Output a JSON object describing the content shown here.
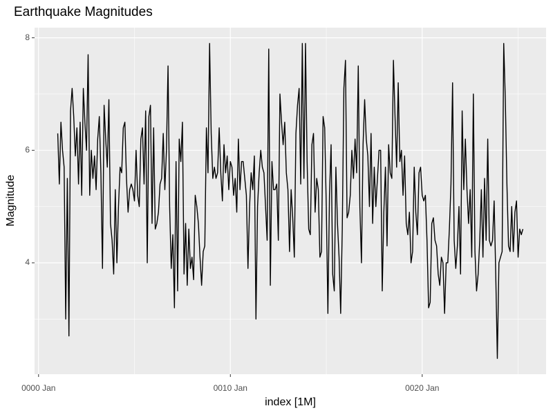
{
  "chart_data": {
    "type": "line",
    "title": "Earthquake Magnitudes",
    "x_label": "index [1M]",
    "y_label": "Magnitude",
    "xlim": [
      -2.5,
      317.5
    ],
    "ylim": [
      2.02,
      8.18
    ],
    "xticks": [
      {
        "value": 0,
        "label": "0000 Jan"
      },
      {
        "value": 120,
        "label": "0010 Jan"
      },
      {
        "value": 240,
        "label": "0020 Jan"
      }
    ],
    "yticks": [
      4,
      6,
      8
    ],
    "xminor": [
      60,
      180,
      300
    ],
    "yminor": [
      3,
      5,
      7
    ],
    "grid": true,
    "series": [
      {
        "color": "#000000",
        "x": [
          12,
          13,
          14,
          15,
          16,
          17,
          18,
          19,
          20,
          21,
          22,
          23,
          24,
          25,
          26,
          27,
          28,
          29,
          30,
          31,
          32,
          33,
          34,
          35,
          36,
          37,
          38,
          39,
          40,
          41,
          42,
          43,
          44,
          45,
          46,
          47,
          48,
          49,
          50,
          51,
          52,
          53,
          54,
          55,
          56,
          57,
          58,
          59,
          60,
          61,
          62,
          63,
          64,
          65,
          66,
          67,
          68,
          69,
          70,
          71,
          72,
          73,
          74,
          75,
          76,
          77,
          78,
          79,
          80,
          81,
          82,
          83,
          84,
          85,
          86,
          87,
          88,
          89,
          90,
          91,
          92,
          93,
          94,
          95,
          96,
          97,
          98,
          99,
          100,
          101,
          102,
          103,
          104,
          105,
          106,
          107,
          108,
          109,
          110,
          111,
          112,
          113,
          114,
          115,
          116,
          117,
          118,
          119,
          120,
          121,
          122,
          123,
          124,
          125,
          126,
          127,
          128,
          129,
          130,
          131,
          132,
          133,
          134,
          135,
          136,
          137,
          138,
          139,
          140,
          141,
          142,
          143,
          144,
          145,
          146,
          147,
          148,
          149,
          150,
          151,
          152,
          153,
          154,
          155,
          156,
          157,
          158,
          159,
          160,
          161,
          162,
          163,
          164,
          165,
          166,
          167,
          168,
          169,
          170,
          171,
          172,
          173,
          174,
          175,
          176,
          177,
          178,
          179,
          180,
          181,
          182,
          183,
          184,
          185,
          186,
          187,
          188,
          189,
          190,
          191,
          192,
          193,
          194,
          195,
          196,
          197,
          198,
          199,
          200,
          201,
          202,
          203,
          204,
          205,
          206,
          207,
          208,
          209,
          210,
          211,
          212,
          213,
          214,
          215,
          216,
          217,
          218,
          219,
          220,
          221,
          222,
          223,
          224,
          225,
          226,
          227,
          228,
          229,
          230,
          231,
          232,
          233,
          234,
          235,
          236,
          237,
          238,
          239,
          240,
          241,
          242,
          243,
          244,
          245,
          246,
          247,
          248,
          249,
          250,
          251,
          252,
          253,
          254,
          255,
          256,
          257,
          258,
          259,
          260,
          261,
          262,
          263,
          264,
          265,
          266,
          267,
          268,
          269,
          270,
          271,
          272,
          273,
          274,
          275,
          276,
          277,
          278,
          279,
          280,
          281,
          282,
          283,
          284,
          285,
          286,
          287,
          288,
          289,
          290,
          291,
          292,
          293,
          294,
          295,
          296,
          297,
          298,
          299,
          300,
          301,
          302,
          303
        ],
        "values": [
          6.3,
          5.4,
          6.5,
          6.0,
          5.7,
          3.0,
          5.5,
          2.7,
          6.7,
          7.1,
          6.6,
          5.9,
          6.4,
          5.4,
          6.5,
          5.2,
          7.1,
          6.5,
          6.0,
          7.7,
          5.2,
          6.0,
          5.5,
          5.9,
          5.3,
          6.2,
          6.6,
          5.6,
          3.9,
          6.8,
          6.2,
          5.7,
          6.9,
          4.7,
          4.4,
          3.8,
          5.3,
          4.0,
          5.0,
          5.7,
          5.6,
          6.4,
          6.5,
          5.5,
          4.9,
          5.3,
          5.4,
          5.3,
          5.1,
          6.0,
          5.2,
          5.0,
          6.2,
          6.4,
          5.4,
          6.7,
          4.0,
          6.6,
          6.8,
          4.7,
          6.4,
          4.6,
          4.7,
          4.9,
          5.4,
          5.5,
          6.3,
          5.3,
          6.0,
          7.5,
          5.0,
          3.9,
          4.5,
          3.2,
          5.8,
          3.5,
          6.2,
          5.8,
          6.5,
          3.8,
          4.7,
          3.6,
          4.6,
          3.9,
          4.1,
          3.7,
          5.2,
          5.0,
          4.7,
          4.1,
          3.6,
          4.2,
          4.3,
          6.4,
          5.6,
          7.9,
          6.3,
          5.5,
          5.7,
          5.5,
          5.6,
          6.4,
          5.6,
          5.1,
          6.1,
          5.6,
          5.9,
          5.3,
          5.8,
          5.7,
          5.2,
          5.5,
          4.9,
          6.2,
          5.3,
          5.8,
          5.8,
          5.5,
          5.2,
          3.9,
          5.0,
          5.6,
          5.3,
          5.9,
          3.0,
          5.0,
          5.6,
          6.0,
          5.7,
          5.6,
          5.0,
          4.4,
          7.8,
          3.6,
          5.8,
          5.3,
          5.3,
          5.4,
          4.4,
          7.0,
          6.5,
          6.1,
          6.5,
          5.6,
          5.3,
          4.2,
          5.3,
          4.8,
          4.1,
          6.3,
          6.8,
          7.1,
          5.4,
          7.9,
          5.5,
          7.9,
          5.8,
          4.6,
          4.5,
          6.1,
          6.3,
          4.9,
          5.5,
          5.3,
          4.1,
          4.2,
          6.6,
          6.4,
          5.0,
          3.1,
          5.2,
          6.1,
          3.8,
          3.5,
          5.7,
          4.7,
          4.1,
          3.1,
          4.6,
          7.1,
          7.6,
          4.8,
          4.9,
          5.2,
          6.0,
          5.5,
          6.2,
          5.6,
          7.5,
          5.0,
          4.0,
          6.1,
          6.9,
          6.2,
          5.9,
          5.0,
          6.3,
          4.7,
          5.7,
          5.0,
          5.5,
          6.0,
          6.0,
          3.5,
          4.9,
          5.7,
          4.3,
          6.1,
          5.6,
          5.5,
          7.6,
          6.6,
          5.7,
          7.2,
          5.8,
          6.0,
          5.2,
          5.9,
          4.7,
          4.5,
          4.9,
          4.0,
          4.2,
          5.7,
          4.9,
          4.5,
          5.6,
          5.7,
          5.2,
          5.1,
          5.2,
          4.4,
          3.2,
          3.3,
          4.7,
          4.8,
          4.4,
          4.3,
          3.8,
          3.6,
          4.1,
          4.0,
          3.1,
          4.0,
          4.0,
          4.6,
          5.4,
          7.2,
          4.4,
          3.9,
          4.3,
          5.0,
          3.8,
          6.7,
          5.3,
          6.2,
          5.3,
          4.7,
          5.3,
          4.1,
          7.0,
          4.2,
          3.5,
          3.8,
          4.4,
          5.3,
          4.1,
          5.5,
          4.4,
          6.2,
          4.4,
          4.3,
          4.4,
          5.1,
          3.8,
          2.3,
          4.0,
          4.1,
          4.2,
          7.9,
          6.9,
          5.4,
          4.3,
          4.2,
          5.0,
          4.2,
          4.9,
          5.1,
          4.1,
          4.6,
          4.5,
          4.6
        ]
      }
    ]
  }
}
